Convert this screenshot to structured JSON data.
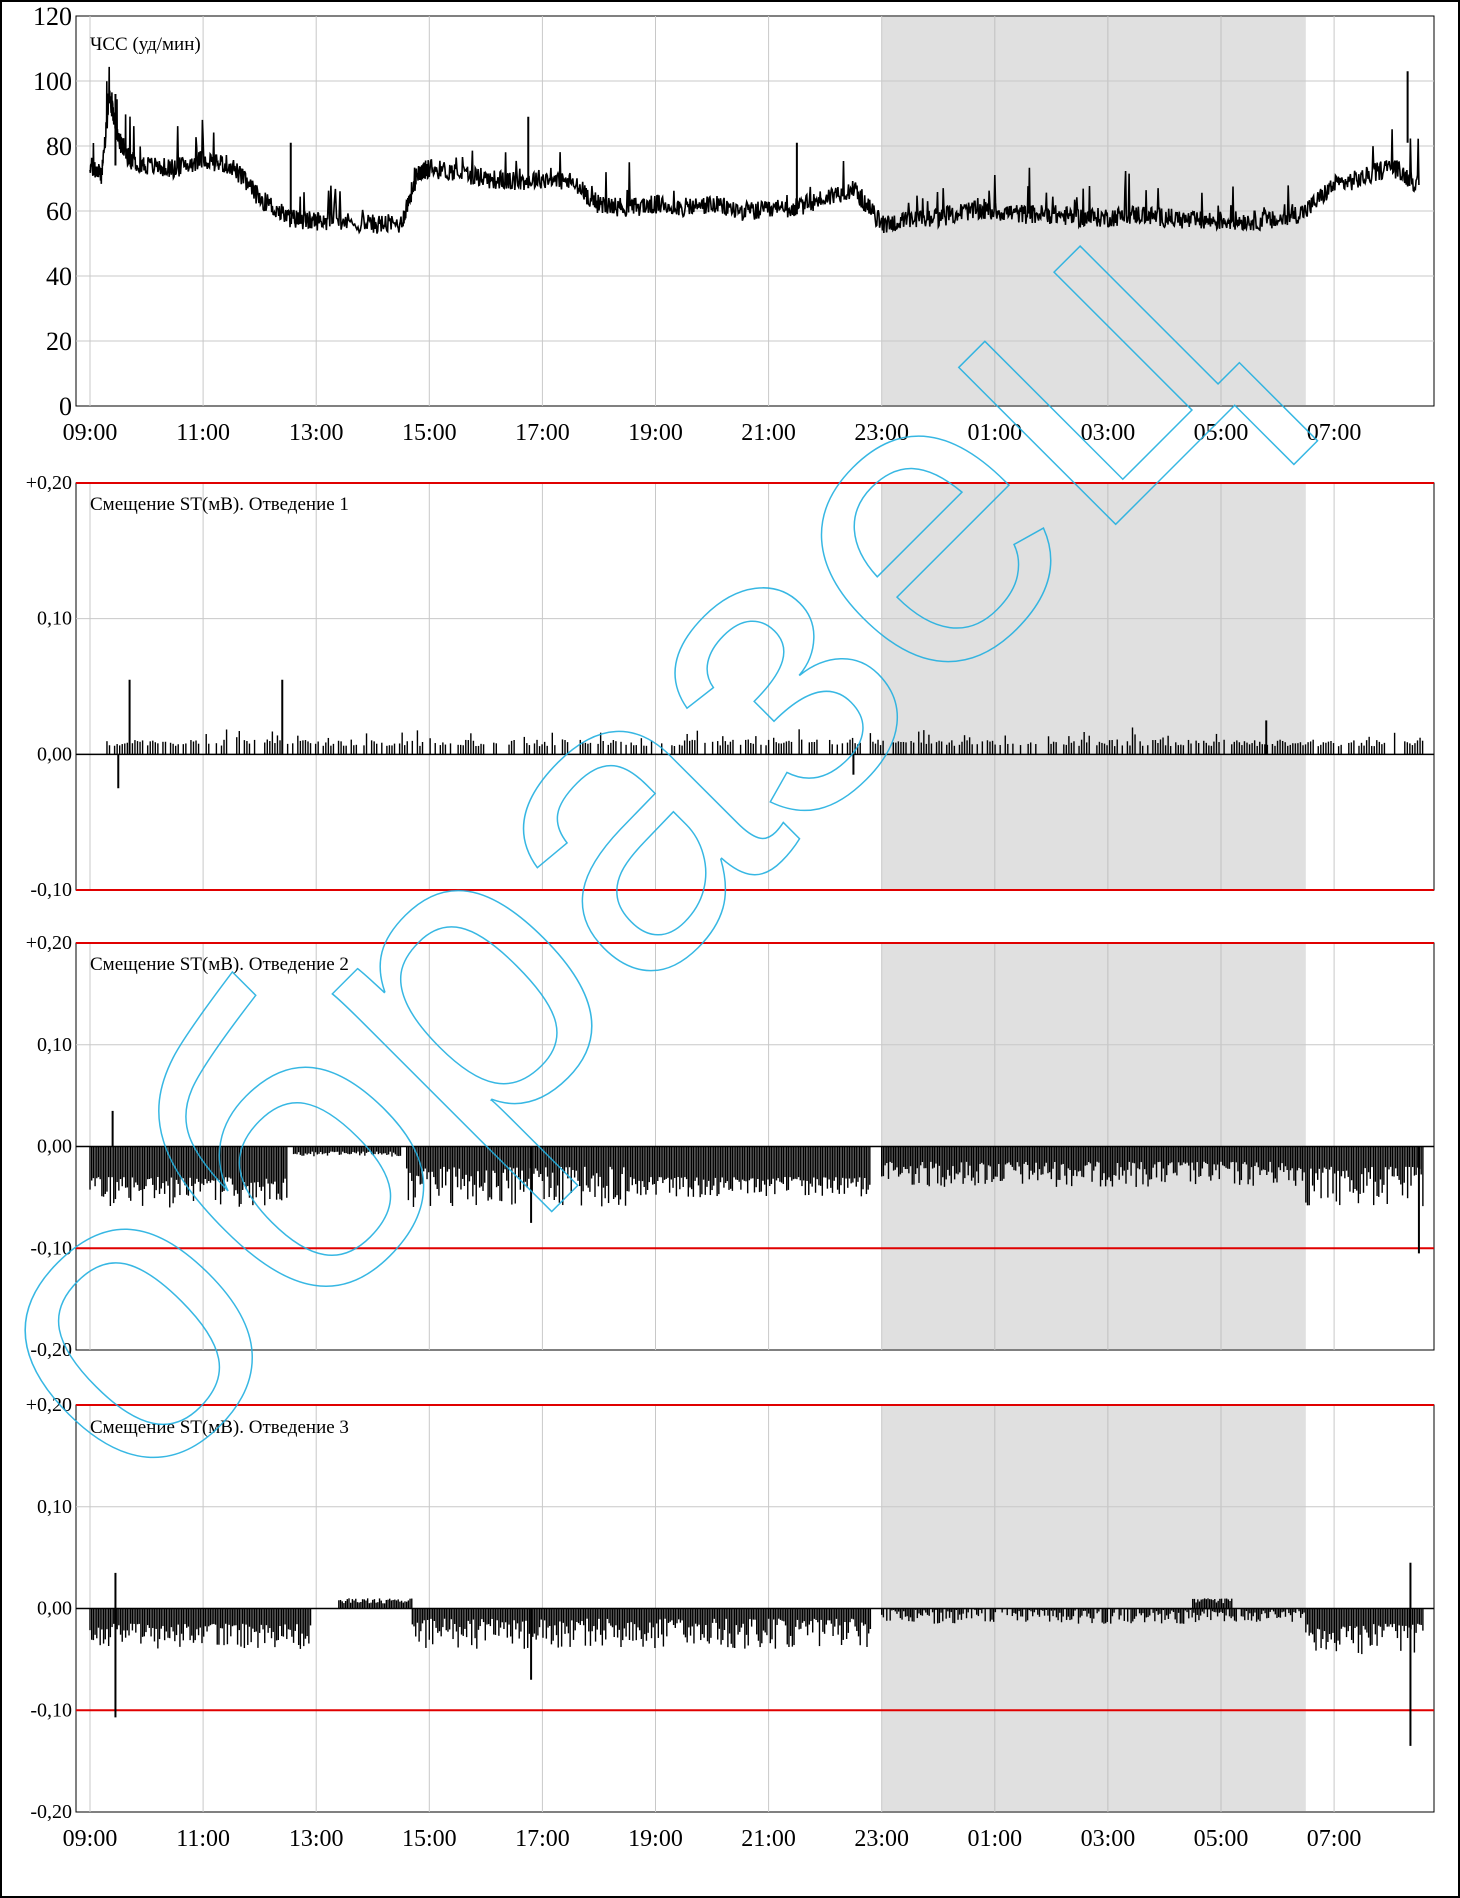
{
  "x_ticks": [
    "09:00",
    "11:00",
    "13:00",
    "15:00",
    "17:00",
    "19:00",
    "21:00",
    "23:00",
    "01:00",
    "03:00",
    "05:00",
    "07:00"
  ],
  "night_band": {
    "from_hours": 14.0,
    "to_hours": 21.5
  },
  "colors": {
    "night_band": "#e0e0e0",
    "threshold": "#e00000",
    "trace": "#000000",
    "grid": "#c8c8c8",
    "watermark": "#22b0e0"
  },
  "watermark": "образец",
  "chart_data": [
    {
      "type": "line",
      "title": "ЧСС (уд/мин)",
      "y_ticks": [
        "120",
        "100",
        "80",
        "60",
        "40",
        "20",
        "0"
      ],
      "ylim": [
        0,
        120
      ],
      "x_range_hours": [
        -0.25,
        23.6
      ],
      "x_tick_labels": [
        "09:00",
        "11:00",
        "13:00",
        "15:00",
        "17:00",
        "19:00",
        "21:00",
        "23:00",
        "01:00",
        "03:00",
        "05:00",
        "07:00"
      ],
      "series": [
        {
          "x_hours": [
            0.0,
            0.2,
            0.35,
            0.5,
            0.7,
            1.0,
            1.5,
            2.0,
            2.5,
            3.0,
            3.5,
            3.8,
            4.2,
            5.0,
            5.5,
            5.8,
            6.0,
            6.5,
            7.0,
            7.5,
            8.0,
            8.5,
            9.0,
            9.5,
            10.0,
            10.5,
            11.0,
            11.5,
            12.0,
            12.5,
            13.0,
            13.5,
            14.0,
            14.5,
            15.0,
            15.5,
            16.0,
            16.5,
            17.0,
            17.5,
            18.0,
            18.5,
            19.0,
            19.5,
            20.0,
            20.5,
            21.0,
            21.5,
            22.0,
            22.5,
            23.0,
            23.5
          ],
          "values": [
            74,
            71,
            95,
            82,
            76,
            74,
            73,
            76,
            74,
            64,
            58,
            57,
            57,
            56,
            56,
            72,
            73,
            72,
            70,
            69,
            70,
            69,
            62,
            61,
            62,
            61,
            62,
            60,
            60,
            61,
            64,
            67,
            56,
            57,
            58,
            60,
            60,
            59,
            59,
            58,
            58,
            59,
            58,
            57,
            57,
            57,
            57,
            60,
            68,
            70,
            74,
            68
          ]
        }
      ],
      "spikes": [
        {
          "x_hours": 0.45,
          "value": 96
        },
        {
          "x_hours": 3.55,
          "value": 81
        },
        {
          "x_hours": 7.75,
          "value": 89
        },
        {
          "x_hours": 12.5,
          "value": 81
        },
        {
          "x_hours": 23.3,
          "value": 103
        }
      ]
    },
    {
      "type": "bar",
      "title": "Смещение ST(мВ). Отведение 1",
      "y_ticks": [
        "+0,20",
        "0,10",
        "0,00",
        "-0,10"
      ],
      "ylim": [
        -0.1,
        0.2
      ],
      "thresholds": [
        0.2,
        -0.1
      ],
      "baseline_offset": 0.01,
      "peak_events": [
        {
          "x_hours": 0.7,
          "value": 0.055
        },
        {
          "x_hours": 3.4,
          "value": 0.055
        },
        {
          "x_hours": 0.5,
          "value": -0.025
        },
        {
          "x_hours": 13.5,
          "value": -0.015
        },
        {
          "x_hours": 20.8,
          "value": 0.025
        }
      ]
    },
    {
      "type": "bar",
      "title": "Смещение ST(мВ). Отведение 2",
      "y_ticks": [
        "+0,20",
        "0,10",
        "0,00",
        "-0,10",
        "-0,20"
      ],
      "ylim": [
        -0.2,
        0.2
      ],
      "thresholds": [
        0.2,
        -0.1
      ],
      "segments": [
        {
          "from_hours": 0.0,
          "to_hours": 3.5,
          "min": -0.06,
          "max": -0.03
        },
        {
          "from_hours": 3.6,
          "to_hours": 5.5,
          "min": -0.01,
          "max": -0.005
        },
        {
          "from_hours": 5.6,
          "to_hours": 9.5,
          "min": -0.06,
          "max": -0.02
        },
        {
          "from_hours": 9.5,
          "to_hours": 13.8,
          "min": -0.05,
          "max": -0.03
        },
        {
          "from_hours": 14.0,
          "to_hours": 21.5,
          "min": -0.04,
          "max": -0.015
        },
        {
          "from_hours": 21.5,
          "to_hours": 23.6,
          "min": -0.06,
          "max": -0.02
        }
      ],
      "peak_events": [
        {
          "x_hours": 0.4,
          "value": 0.035
        },
        {
          "x_hours": 7.8,
          "value": -0.075
        },
        {
          "x_hours": 23.5,
          "value": -0.105
        }
      ]
    },
    {
      "type": "bar",
      "title": "Смещение ST(мВ). Отведение 3",
      "y_ticks": [
        "+0,20",
        "0,10",
        "0,00",
        "-0,10",
        "-0,20"
      ],
      "ylim": [
        -0.2,
        0.2
      ],
      "thresholds": [
        0.2,
        -0.1
      ],
      "segments": [
        {
          "from_hours": 0.0,
          "to_hours": 3.9,
          "min": -0.04,
          "max": -0.015
        },
        {
          "from_hours": 4.4,
          "to_hours": 5.7,
          "min": 0.005,
          "max": 0.01
        },
        {
          "from_hours": 5.7,
          "to_hours": 13.8,
          "min": -0.04,
          "max": -0.01
        },
        {
          "from_hours": 14.0,
          "to_hours": 21.5,
          "min": -0.015,
          "max": 0.0
        },
        {
          "from_hours": 19.5,
          "to_hours": 20.2,
          "min": 0.005,
          "max": 0.01
        },
        {
          "from_hours": 21.5,
          "to_hours": 23.6,
          "min": -0.045,
          "max": -0.015
        }
      ],
      "peak_events": [
        {
          "x_hours": 0.45,
          "value": 0.035
        },
        {
          "x_hours": 0.45,
          "value": -0.107
        },
        {
          "x_hours": 7.8,
          "value": -0.07
        },
        {
          "x_hours": 23.35,
          "value": 0.045
        },
        {
          "x_hours": 23.35,
          "value": -0.135
        }
      ]
    }
  ]
}
